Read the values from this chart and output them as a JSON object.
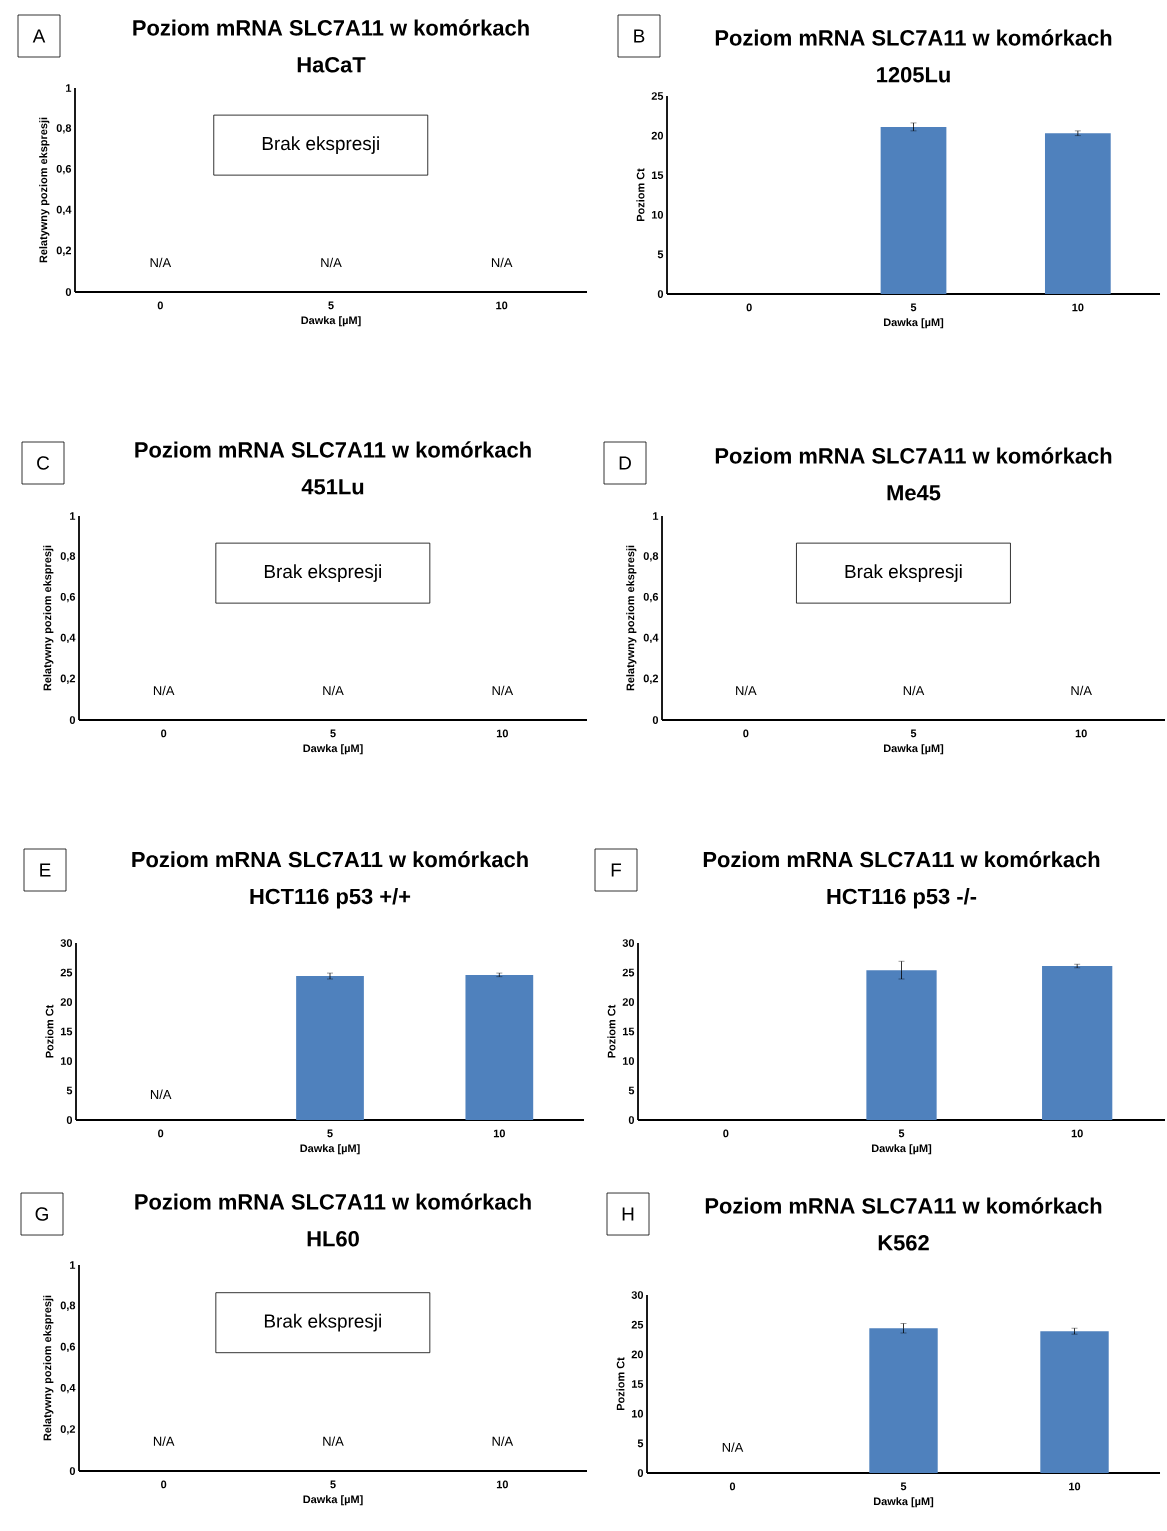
{
  "chart_data": [
    {
      "type": "bar",
      "title": "Poziom mRNA SLC7A11 w komórkach HaCaT",
      "subtitle": "Brak ekspresji",
      "xlabel": "Dawka [µM]",
      "ylabel": "Relatywny poziom ekspresji",
      "categories": [
        "0",
        "5",
        "10"
      ],
      "values": [
        null,
        null,
        null
      ],
      "ylim": [
        0,
        1
      ],
      "yticks": [
        0,
        {
          "value": 0.2,
          "label": "0,2"
        },
        {
          "value": 0.4,
          "label": "0,4"
        },
        {
          "value": 0.6,
          "label": "0,6"
        },
        {
          "value": 0.8,
          "label": "0,8"
        },
        1
      ],
      "annotations": [
        "A",
        "N/A",
        "N/A",
        "N/A"
      ]
    },
    {
      "type": "bar",
      "title": "Poziom mRNA SLC7A11 w komórkach 1205Lu",
      "xlabel": "Dawka [µM]",
      "ylabel": "Poziom Ct",
      "categories": [
        "0",
        "5",
        "10"
      ],
      "values": [
        null,
        21.1,
        20.3
      ],
      "errors": [
        null,
        0.5,
        0.3
      ],
      "color": "#4f81bd",
      "ylim": [
        0,
        25
      ],
      "yticks": [
        0,
        5,
        10,
        15,
        20,
        25
      ],
      "annotations": [
        "B"
      ]
    },
    {
      "type": "bar",
      "title": "Poziom mRNA SLC7A11 w komórkach 451Lu",
      "subtitle": "Brak ekspresji",
      "xlabel": "Dawka [µM]",
      "ylabel": "Relatywny poziom ekspresji",
      "categories": [
        "0",
        "5",
        "10"
      ],
      "values": [
        null,
        null,
        null
      ],
      "ylim": [
        0,
        1
      ],
      "yticks": [
        0,
        {
          "value": 0.2,
          "label": "0,2"
        },
        {
          "value": 0.4,
          "label": "0,4"
        },
        {
          "value": 0.6,
          "label": "0,6"
        },
        {
          "value": 0.8,
          "label": "0,8"
        },
        1
      ],
      "annotations": [
        "C",
        "N/A",
        "N/A",
        "N/A"
      ]
    },
    {
      "type": "bar",
      "title": "Poziom mRNA SLC7A11 w komórkach Me45",
      "subtitle": "Brak ekspresji",
      "xlabel": "Dawka [µM]",
      "ylabel": "Relatywny poziom ekspresji",
      "categories": [
        "0",
        "5",
        "10"
      ],
      "values": [
        null,
        null,
        null
      ],
      "ylim": [
        0,
        1
      ],
      "yticks": [
        0,
        {
          "value": 0.2,
          "label": "0,2"
        },
        {
          "value": 0.4,
          "label": "0,4"
        },
        {
          "value": 0.6,
          "label": "0,6"
        },
        {
          "value": 0.8,
          "label": "0,8"
        },
        1
      ],
      "annotations": [
        "D",
        "N/A",
        "N/A",
        "N/A"
      ]
    },
    {
      "type": "bar",
      "title": "Poziom mRNA SLC7A11 w komórkach HCT116 p53 +/+",
      "xlabel": "Dawka [µM]",
      "ylabel": "Poziom Ct",
      "categories": [
        "0",
        "5",
        "10"
      ],
      "values": [
        null,
        24.4,
        24.6
      ],
      "errors": [
        null,
        0.5,
        0.3
      ],
      "color": "#4f81bd",
      "ylim": [
        0,
        30
      ],
      "yticks": [
        0,
        5,
        10,
        15,
        20,
        25,
        30
      ],
      "annotations": [
        "E",
        "N/A"
      ]
    },
    {
      "type": "bar",
      "title": "Poziom mRNA SLC7A11 w komórkach HCT116 p53 -/-",
      "xlabel": "Dawka [µM]",
      "ylabel": "Poziom Ct",
      "categories": [
        "0",
        "5",
        "10"
      ],
      "values": [
        null,
        25.4,
        26.1
      ],
      "errors": [
        null,
        1.5,
        0.3
      ],
      "color": "#4f81bd",
      "ylim": [
        0,
        30
      ],
      "yticks": [
        0,
        5,
        10,
        15,
        20,
        25,
        30
      ],
      "annotations": [
        "F"
      ]
    },
    {
      "type": "bar",
      "title": "Poziom mRNA SLC7A11 w komórkach HL60",
      "subtitle": "Brak ekspresji",
      "xlabel": "Dawka [µM]",
      "ylabel": "Relatywny poziom ekspresji",
      "categories": [
        "0",
        "5",
        "10"
      ],
      "values": [
        null,
        null,
        null
      ],
      "ylim": [
        0,
        1
      ],
      "yticks": [
        0,
        {
          "value": 0.2,
          "label": "0,2"
        },
        {
          "value": 0.4,
          "label": "0,4"
        },
        {
          "value": 0.6,
          "label": "0,6"
        },
        {
          "value": 0.8,
          "label": "0,8"
        },
        1
      ],
      "annotations": [
        "G",
        "N/A",
        "N/A",
        "N/A"
      ]
    },
    {
      "type": "bar",
      "title": "Poziom mRNA SLC7A11 w komórkach K562",
      "xlabel": "Dawka [µM]",
      "ylabel": "Poziom Ct",
      "categories": [
        "0",
        "5",
        "10"
      ],
      "values": [
        null,
        24.4,
        23.9
      ],
      "errors": [
        null,
        0.8,
        0.5
      ],
      "color": "#4f81bd",
      "ylim": [
        0,
        30
      ],
      "yticks": [
        0,
        5,
        10,
        15,
        20,
        25,
        30
      ],
      "annotations": [
        "H",
        "N/A"
      ]
    }
  ]
}
